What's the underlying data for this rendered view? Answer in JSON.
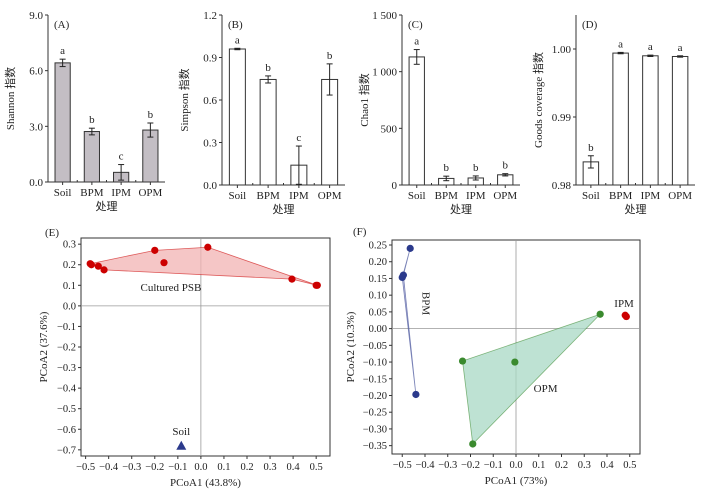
{
  "chart_data": [
    {
      "panel": "(A)",
      "type": "bar",
      "categories": [
        "Soil",
        "BPM",
        "IPM",
        "OPM"
      ],
      "values": [
        6.42,
        2.72,
        0.52,
        2.8
      ],
      "errors": [
        0.2,
        0.18,
        0.42,
        0.38
      ],
      "sig_letters": [
        "a",
        "b",
        "c",
        "b"
      ],
      "ylabel": "Shannon 指数",
      "xlabel": "处理",
      "ylim": [
        0,
        9
      ],
      "yticks": [
        "0.0",
        "3.0",
        "6.0",
        "9.0"
      ],
      "ytick_values": [
        0,
        3,
        6,
        9
      ],
      "bar_fill": "#c3bec4"
    },
    {
      "panel": "(B)",
      "type": "bar",
      "categories": [
        "Soil",
        "BPM",
        "IPM",
        "OPM"
      ],
      "values": [
        0.96,
        0.745,
        0.14,
        0.745
      ],
      "errors": [
        0.005,
        0.025,
        0.135,
        0.11
      ],
      "sig_letters": [
        "a",
        "b",
        "c",
        "b"
      ],
      "ylabel": "Simpson 指数",
      "xlabel": "处理",
      "ylim": [
        0,
        1.2
      ],
      "yticks": [
        "0.0",
        "0.3",
        "0.6",
        "0.9",
        "1.2"
      ],
      "ytick_values": [
        0,
        0.3,
        0.6,
        0.9,
        1.2
      ],
      "bar_fill": "#ffffff"
    },
    {
      "panel": "(C)",
      "type": "bar",
      "categories": [
        "Soil",
        "BPM",
        "IPM",
        "OPM"
      ],
      "values": [
        1130,
        58,
        62,
        90
      ],
      "errors": [
        65,
        20,
        18,
        10
      ],
      "sig_letters": [
        "a",
        "b",
        "b",
        "b"
      ],
      "ylabel": "Chao1 指数",
      "xlabel": "处理",
      "ylim": [
        0,
        1500
      ],
      "yticks": [
        "0",
        "500",
        "1 000",
        "1 500"
      ],
      "ytick_values": [
        0,
        500,
        1000,
        1500
      ],
      "bar_fill": "#ffffff"
    },
    {
      "panel": "(D)",
      "type": "bar",
      "categories": [
        "Soil",
        "BPM",
        "IPM",
        "OPM"
      ],
      "values": [
        0.9834,
        0.9994,
        0.999,
        0.9989
      ],
      "errors": [
        0.0009,
        0.0001,
        0.0001,
        0.0001
      ],
      "sig_letters": [
        "b",
        "a",
        "a",
        "a"
      ],
      "ylabel": "Goods coverage 指数",
      "xlabel": "处理",
      "ylim": [
        0.98,
        1.005
      ],
      "yticks": [
        "0.98",
        "0.99",
        "1.00"
      ],
      "ytick_values": [
        0.98,
        0.99,
        1.0
      ],
      "bar_fill": "#ffffff"
    },
    {
      "panel": "(E)",
      "type": "scatter",
      "xlabel": "PCoA1 (43.8%)",
      "ylabel": "PCoA2 (37.6%)",
      "xlim": [
        -0.52,
        0.56
      ],
      "ylim": [
        -0.73,
        0.33
      ],
      "xticks": [
        "−0.5",
        "−0.4",
        "−0.3",
        "−0.2",
        "−0.1",
        "0.0",
        "0.1",
        "0.2",
        "0.3",
        "0.4",
        "0.5"
      ],
      "xtick_values": [
        -0.5,
        -0.4,
        -0.3,
        -0.2,
        -0.1,
        0,
        0.1,
        0.2,
        0.3,
        0.4,
        0.5
      ],
      "yticks": [
        "0.3",
        "0.2",
        "0.1",
        "0.0",
        "−0.1",
        "−0.2",
        "−0.3",
        "−0.4",
        "−0.5",
        "−0.6",
        "−0.7"
      ],
      "ytick_values": [
        0.3,
        0.2,
        0.1,
        0,
        -0.1,
        -0.2,
        -0.3,
        -0.4,
        -0.5,
        -0.6,
        -0.7
      ],
      "groups": [
        {
          "name": "Cultured PSB",
          "label_pos": [
            -0.13,
            0.073
          ],
          "color": "#cc0000",
          "fill": "#f2b3b3",
          "marker": "circle",
          "points": [
            [
              -0.48,
              0.205
            ],
            [
              -0.475,
              0.2
            ],
            [
              -0.445,
              0.193
            ],
            [
              -0.42,
              0.175
            ],
            [
              -0.2,
              0.27
            ],
            [
              -0.16,
              0.21
            ],
            [
              0.03,
              0.285
            ],
            [
              0.395,
              0.13
            ],
            [
              0.5,
              0.1
            ],
            [
              0.505,
              0.1
            ]
          ],
          "hull": [
            [
              -0.48,
              0.205
            ],
            [
              -0.2,
              0.27
            ],
            [
              0.03,
              0.285
            ],
            [
              0.505,
              0.1
            ],
            [
              0.395,
              0.13
            ],
            [
              -0.42,
              0.175
            ]
          ]
        },
        {
          "name": "Soil",
          "label_pos": [
            -0.085,
            -0.628
          ],
          "color": "#2b3a8c",
          "marker": "triangle",
          "points": [
            [
              -0.085,
              -0.68
            ]
          ]
        }
      ]
    },
    {
      "panel": "(F)",
      "type": "scatter",
      "xlabel": "PCoA1 (73%)",
      "ylabel": "PCoA2 (10.3%)",
      "xlim": [
        -0.545,
        0.545
      ],
      "ylim": [
        -0.375,
        0.265
      ],
      "xticks": [
        "−0.5",
        "−0.4",
        "−0.3",
        "−0.2",
        "−0.1",
        "0.0",
        "0.1",
        "0.2",
        "0.3",
        "0.4",
        "0.5"
      ],
      "xtick_values": [
        -0.5,
        -0.4,
        -0.3,
        -0.2,
        -0.1,
        0,
        0.1,
        0.2,
        0.3,
        0.4,
        0.5
      ],
      "yticks": [
        "0.25",
        "0.20",
        "0.15",
        "0.10",
        "0.05",
        "0.00",
        "−0.05",
        "−0.10",
        "−0.15",
        "−0.20",
        "−0.25",
        "−0.30",
        "−0.35"
      ],
      "ytick_values": [
        0.25,
        0.2,
        0.15,
        0.1,
        0.05,
        0,
        -0.05,
        -0.1,
        -0.15,
        -0.2,
        -0.25,
        -0.3,
        -0.35
      ],
      "groups": [
        {
          "name": "BPM",
          "label_pos": [
            -0.41,
            0.075
          ],
          "label_rotated": true,
          "color": "#2b3a8c",
          "fill": "#c6c6e3",
          "marker": "circle",
          "points": [
            [
              -0.465,
              0.24
            ],
            [
              -0.495,
              0.16
            ],
            [
              -0.5,
              0.153
            ],
            [
              -0.44,
              -0.197
            ]
          ],
          "hull": [
            [
              -0.465,
              0.24
            ],
            [
              -0.5,
              0.153
            ],
            [
              -0.44,
              -0.197
            ],
            [
              -0.495,
              0.16
            ]
          ]
        },
        {
          "name": "OPM",
          "label_pos": [
            0.13,
            -0.19
          ],
          "color": "#3a8a2e",
          "fill": "#a8d8c4",
          "marker": "circle",
          "points": [
            [
              0.37,
              0.043
            ],
            [
              -0.235,
              -0.097
            ],
            [
              -0.005,
              -0.1
            ],
            [
              -0.19,
              -0.345
            ]
          ],
          "hull": [
            [
              0.37,
              0.043
            ],
            [
              -0.235,
              -0.097
            ],
            [
              -0.19,
              -0.345
            ]
          ]
        },
        {
          "name": "IPM",
          "label_pos": [
            0.475,
            0.065
          ],
          "color": "#cc0000",
          "marker": "circle",
          "points": [
            [
              0.48,
              0.04
            ],
            [
              0.485,
              0.036
            ]
          ]
        }
      ]
    }
  ]
}
